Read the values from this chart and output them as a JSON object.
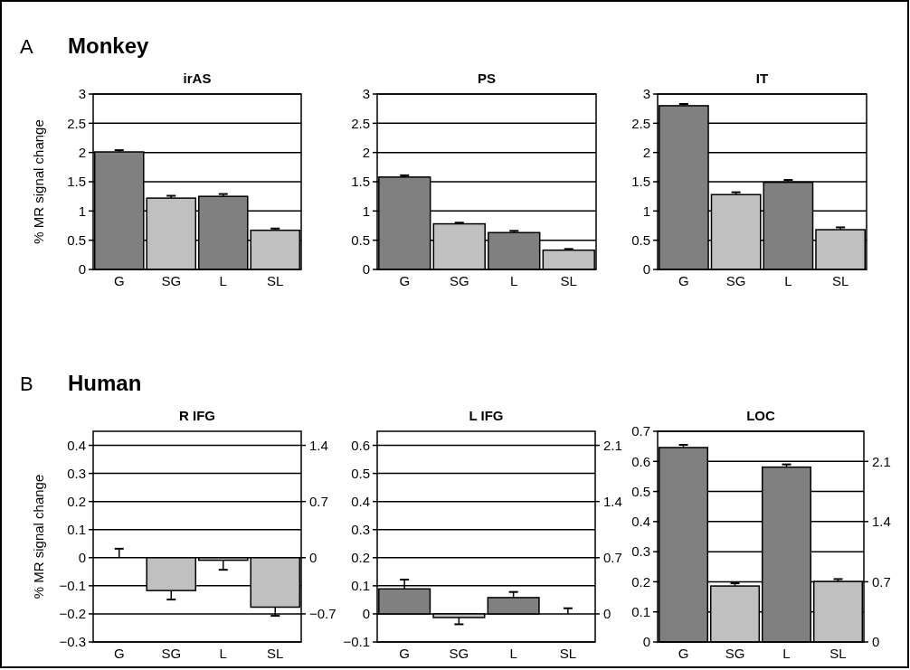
{
  "chart_data": [
    {
      "type": "bar",
      "title": "irAS",
      "ylabel": "% MR signal change",
      "annotations": [
        "A",
        "Monkey"
      ],
      "categories": [
        "G",
        "SG",
        "L",
        "SL"
      ],
      "values": [
        2.01,
        1.22,
        1.25,
        0.67
      ],
      "errors": [
        [
          2.01,
          2.04
        ],
        [
          1.22,
          1.26
        ],
        [
          1.25,
          1.29
        ],
        [
          0.67,
          0.7
        ]
      ],
      "colors": [
        "#808080",
        "#c0c0c0",
        "#808080",
        "#c0c0c0"
      ],
      "ylim": [
        0,
        3
      ],
      "yticks": [
        0,
        0.5,
        1,
        1.5,
        2,
        2.5,
        3
      ],
      "grid": "y"
    },
    {
      "type": "bar",
      "title": "PS",
      "categories": [
        "G",
        "SG",
        "L",
        "SL"
      ],
      "values": [
        1.58,
        0.78,
        0.63,
        0.33
      ],
      "errors": [
        [
          1.58,
          1.61
        ],
        [
          0.78,
          0.8
        ],
        [
          0.63,
          0.66
        ],
        [
          0.33,
          0.35
        ]
      ],
      "colors": [
        "#808080",
        "#c0c0c0",
        "#808080",
        "#c0c0c0"
      ],
      "ylim": [
        0,
        3
      ],
      "yticks": [
        0,
        0.5,
        1,
        1.5,
        2,
        2.5,
        3
      ],
      "grid": "y"
    },
    {
      "type": "bar",
      "title": "IT",
      "categories": [
        "G",
        "SG",
        "L",
        "SL"
      ],
      "values": [
        2.8,
        1.28,
        1.49,
        0.68
      ],
      "errors": [
        [
          2.8,
          2.83
        ],
        [
          1.28,
          1.32
        ],
        [
          1.49,
          1.53
        ],
        [
          0.68,
          0.72
        ]
      ],
      "colors": [
        "#808080",
        "#c0c0c0",
        "#808080",
        "#c0c0c0"
      ],
      "ylim": [
        0,
        3
      ],
      "yticks": [
        0,
        0.5,
        1,
        1.5,
        2,
        2.5,
        3
      ],
      "grid": "y"
    },
    {
      "type": "bar",
      "title": "R IFG",
      "ylabel": "% MR signal change",
      "annotations": [
        "B",
        "Human"
      ],
      "categories": [
        "G",
        "SG",
        "L",
        "SL"
      ],
      "values": [
        0,
        -0.117,
        -0.009,
        -0.176
      ],
      "errors": [
        [
          0,
          0.032
        ],
        [
          -0.149,
          -0.117
        ],
        [
          -0.043,
          -0.009
        ],
        [
          -0.207,
          -0.176
        ]
      ],
      "colors": [
        "#808080",
        "#c0c0c0",
        "#c0c0c0",
        "#c0c0c0"
      ],
      "ylim": [
        -0.3,
        0.45
      ],
      "yticks": [
        -0.3,
        -0.2,
        -0.1,
        0,
        0.1,
        0.2,
        0.3,
        0.4
      ],
      "y2lim": [
        -1.05,
        1.575
      ],
      "y2ticks": [
        -0.7,
        0,
        0.7,
        1.4
      ],
      "grid": "y"
    },
    {
      "type": "bar",
      "title": "L IFG",
      "categories": [
        "G",
        "SG",
        "L",
        "SL"
      ],
      "values": [
        0.089,
        -0.013,
        0.058,
        0
      ],
      "errors": [
        [
          0.089,
          0.122
        ],
        [
          -0.037,
          -0.013
        ],
        [
          0.058,
          0.078
        ],
        [
          0,
          0.02
        ]
      ],
      "colors": [
        "#808080",
        "#c0c0c0",
        "#808080",
        "#c0c0c0"
      ],
      "ylim": [
        -0.1,
        0.65
      ],
      "yticks": [
        -0.1,
        0,
        0.1,
        0.2,
        0.3,
        0.4,
        0.5,
        0.6
      ],
      "y2lim": [
        -0.35,
        2.275
      ],
      "y2ticks": [
        0,
        0.7,
        1.4,
        2.1
      ],
      "grid": "y"
    },
    {
      "type": "bar",
      "title": "LOC",
      "categories": [
        "G",
        "SG",
        "L",
        "SL"
      ],
      "values": [
        0.646,
        0.186,
        0.581,
        0.201
      ],
      "errors": [
        [
          0.646,
          0.655
        ],
        [
          0.186,
          0.195
        ],
        [
          0.581,
          0.59
        ],
        [
          0.201,
          0.209
        ]
      ],
      "colors": [
        "#808080",
        "#c0c0c0",
        "#808080",
        "#c0c0c0"
      ],
      "ylim": [
        0,
        0.7
      ],
      "yticks": [
        0,
        0.1,
        0.2,
        0.3,
        0.4,
        0.5,
        0.6,
        0.7
      ],
      "y2lim": [
        0,
        2.45
      ],
      "y2ticks": [
        0,
        0.7,
        1.4,
        2.1
      ],
      "grid": "y"
    }
  ]
}
